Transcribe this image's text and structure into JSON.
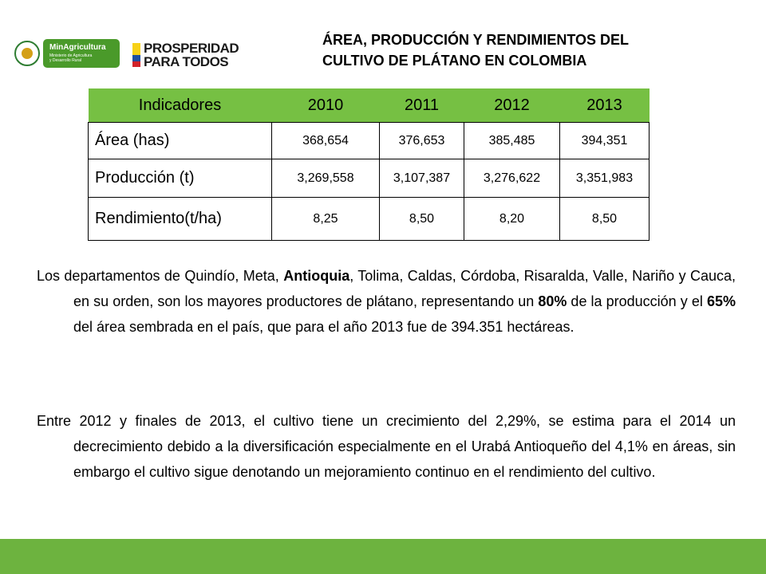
{
  "logos": {
    "minagricultura": {
      "name": "MinAgricultura",
      "line1": "Ministerio de Agricultura",
      "line2": "y Desarrollo Rural"
    },
    "prosperidad": {
      "line1": "PROSPERIDAD",
      "line2": "PARA TODOS"
    }
  },
  "heading": {
    "line1": "ÁREA, PRODUCCIÓN Y RENDIMIENTOS DEL",
    "line2": "CULTIVO DE PLÁTANO EN COLOMBIA"
  },
  "table": {
    "headers": [
      "Indicadores",
      "2010",
      "2011",
      "2012",
      "2013"
    ],
    "rows": [
      {
        "label": "Área (has)",
        "values": [
          "368,654",
          "376,653",
          "385,485",
          "394,351"
        ]
      },
      {
        "label": "Producción (t)",
        "values": [
          "3,269,558",
          "3,107,387",
          "3,276,622",
          "3,351,983"
        ]
      },
      {
        "label": "Rendimiento(t/ha)",
        "values": [
          "8,25",
          "8,50",
          "8,20",
          "8,50"
        ]
      }
    ]
  },
  "paragraph1": {
    "a": "Los departamentos de Quindío, Meta, ",
    "b": "Antioquia",
    "c": ", Tolima, Caldas, Córdoba, Risaralda, Valle, Nariño y Cauca, en su orden, son los mayores productores de plátano, representando un ",
    "d": "80%",
    "e": " de la producción y el ",
    "f": "65%",
    "g": " del área sembrada en el país, que para el año 2013 fue de 394.351 hectáreas."
  },
  "paragraph2": "Entre 2012 y finales de 2013,  el cultivo tiene un crecimiento del 2,29%, se estima para el 2014 un decrecimiento debido a la diversificación especialmente en el Urabá Antioqueño del 4,1% en áreas, sin embargo el cultivo sigue  denotando un mejoramiento continuo en el rendimiento del cultivo.",
  "colors": {
    "header_green": "#76c043",
    "footer_green": "#6db33f",
    "logo_green": "#4a9a2a"
  }
}
